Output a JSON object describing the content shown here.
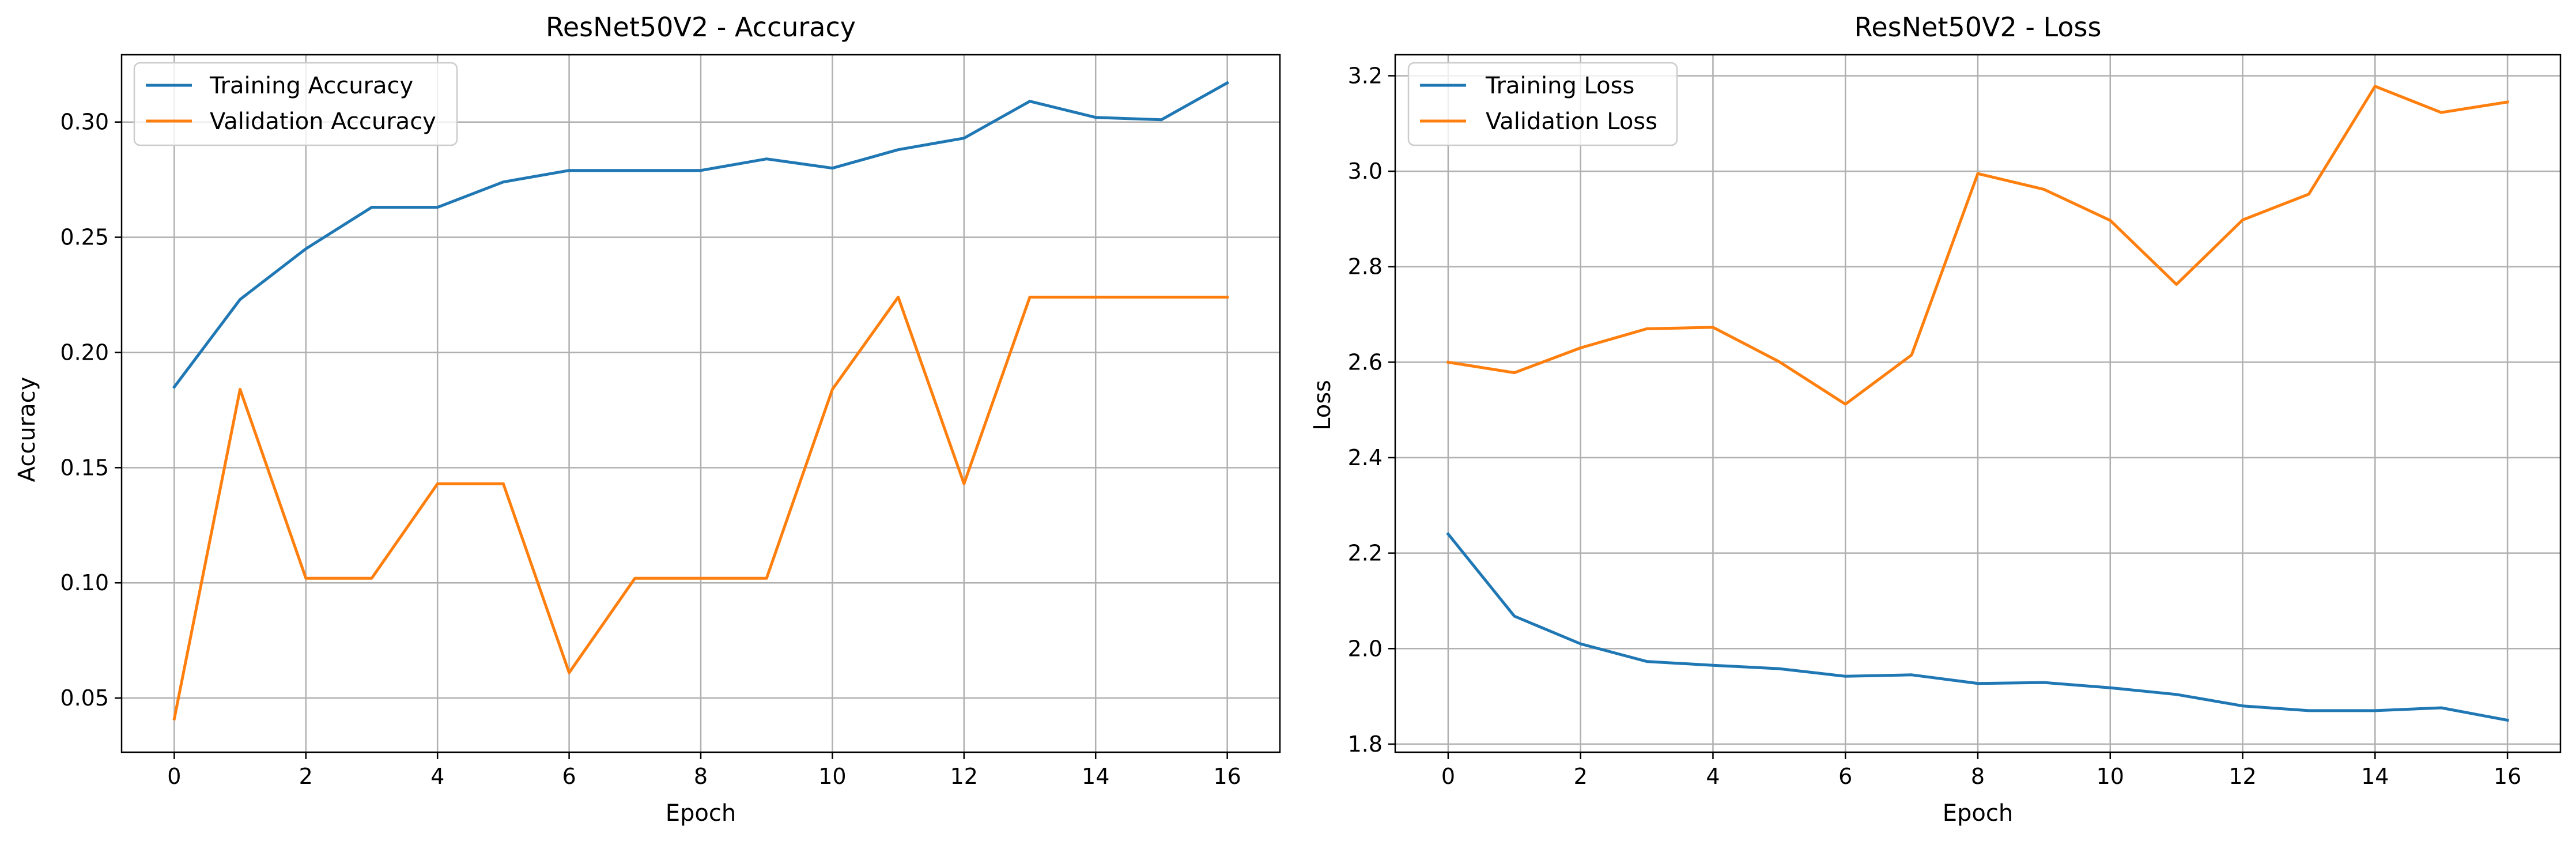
{
  "chart_data": [
    {
      "type": "line",
      "title": "ResNet50V2 - Accuracy",
      "xlabel": "Epoch",
      "ylabel": "Accuracy",
      "xlim": [
        -0.8,
        16.8
      ],
      "ylim": [
        0.0265,
        0.3292
      ],
      "xticks": [
        0,
        2,
        4,
        6,
        8,
        10,
        12,
        14,
        16
      ],
      "yticks": [
        0.05,
        0.1,
        0.15,
        0.2,
        0.25,
        0.3
      ],
      "ytick_labels": [
        "0.05",
        "0.10",
        "0.15",
        "0.20",
        "0.25",
        "0.30"
      ],
      "grid": true,
      "legend_position": "upper-left",
      "x": [
        0,
        1,
        2,
        3,
        4,
        5,
        6,
        7,
        8,
        9,
        10,
        11,
        12,
        13,
        14,
        15,
        16
      ],
      "series": [
        {
          "name": "Training Accuracy",
          "color": "#1f77b4",
          "values": [
            0.185,
            0.223,
            0.245,
            0.263,
            0.263,
            0.274,
            0.279,
            0.279,
            0.279,
            0.284,
            0.28,
            0.288,
            0.293,
            0.309,
            0.302,
            0.301,
            0.317
          ]
        },
        {
          "name": "Validation Accuracy",
          "color": "#ff7f0e",
          "values": [
            0.041,
            0.184,
            0.102,
            0.102,
            0.143,
            0.143,
            0.061,
            0.102,
            0.102,
            0.102,
            0.184,
            0.224,
            0.143,
            0.224,
            0.224,
            0.224,
            0.224
          ]
        }
      ]
    },
    {
      "type": "line",
      "title": "ResNet50V2 - Loss",
      "xlabel": "Epoch",
      "ylabel": "Loss",
      "xlim": [
        -0.8,
        16.8
      ],
      "ylim": [
        1.783,
        3.244
      ],
      "xticks": [
        0,
        2,
        4,
        6,
        8,
        10,
        12,
        14,
        16
      ],
      "yticks": [
        1.8,
        2.0,
        2.2,
        2.4,
        2.6,
        2.8,
        3.0,
        3.2
      ],
      "ytick_labels": [
        "1.8",
        "2.0",
        "2.2",
        "2.4",
        "2.6",
        "2.8",
        "3.0",
        "3.2"
      ],
      "grid": true,
      "legend_position": "upper-left",
      "x": [
        0,
        1,
        2,
        3,
        4,
        5,
        6,
        7,
        8,
        9,
        10,
        11,
        12,
        13,
        14,
        15,
        16
      ],
      "series": [
        {
          "name": "Training Loss",
          "color": "#1f77b4",
          "values": [
            2.24,
            2.068,
            2.01,
            1.973,
            1.965,
            1.958,
            1.942,
            1.945,
            1.927,
            1.929,
            1.918,
            1.904,
            1.88,
            1.87,
            1.87,
            1.876,
            1.85
          ]
        },
        {
          "name": "Validation Loss",
          "color": "#ff7f0e",
          "values": [
            2.6,
            2.578,
            2.63,
            2.67,
            2.673,
            2.601,
            2.512,
            2.615,
            2.995,
            2.962,
            2.897,
            2.763,
            2.898,
            2.952,
            3.178,
            3.123,
            3.145
          ]
        }
      ]
    }
  ]
}
